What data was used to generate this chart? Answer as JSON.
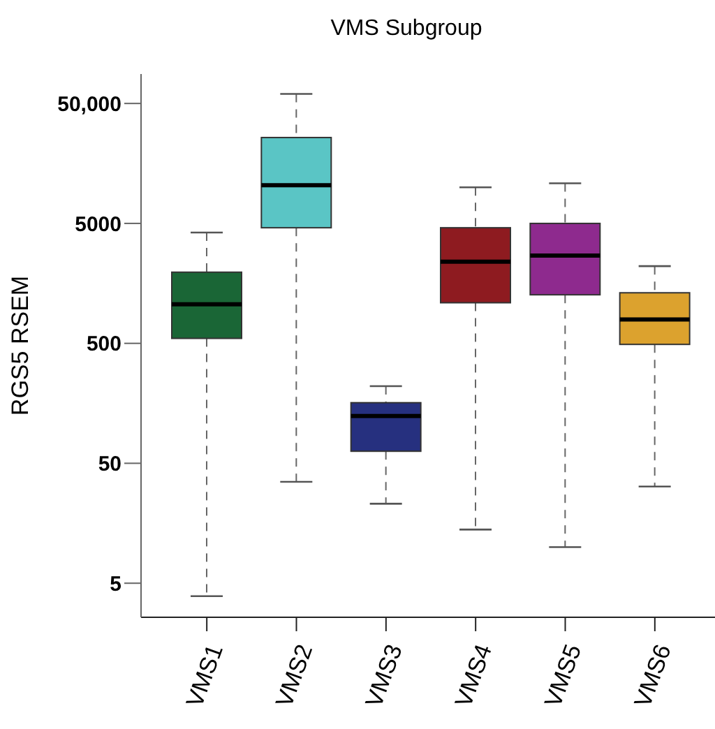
{
  "chart_data": {
    "type": "box",
    "title": "VMS Subgroup",
    "ylabel": "RGS5 RSEM",
    "log": "y",
    "categories": [
      "VMS1",
      "VMS2",
      "VMS3",
      "VMS4",
      "VMS5",
      "VMS6"
    ],
    "colors": [
      "#1a6636",
      "#5ac5c5",
      "#26307f",
      "#8e1b20",
      "#8e2a8e",
      "#dca22e"
    ],
    "boxes": [
      {
        "low": 3.9,
        "q1": 550,
        "median": 1060,
        "q3": 1960,
        "high": 4200
      },
      {
        "low": 35,
        "q1": 4600,
        "median": 10400,
        "q3": 26000,
        "high": 60000
      },
      {
        "low": 23,
        "q1": 63,
        "median": 124,
        "q3": 160,
        "high": 220
      },
      {
        "low": 14,
        "q1": 1090,
        "median": 2400,
        "q3": 4600,
        "high": 10000
      },
      {
        "low": 10,
        "q1": 1270,
        "median": 2700,
        "q3": 5000,
        "high": 10800
      },
      {
        "low": 32,
        "q1": 490,
        "median": 790,
        "q3": 1320,
        "high": 2200
      }
    ],
    "ylim": [
      2.6,
      88000
    ],
    "yticks": [
      5,
      50,
      500,
      5000,
      {
        "value": 50000,
        "label": "50,000"
      }
    ]
  }
}
